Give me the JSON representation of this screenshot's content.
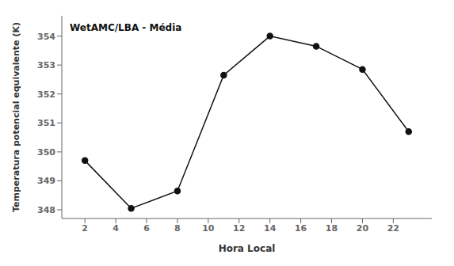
{
  "chart_data": {
    "type": "line",
    "x": [
      2,
      5,
      8,
      11,
      14,
      17,
      20,
      23
    ],
    "values": [
      349.7,
      348.05,
      348.65,
      352.65,
      354.0,
      353.65,
      352.85,
      350.7
    ],
    "xlabel": "Hora Local",
    "ylabel": "Temperatura potencial equivalente (K)",
    "annotation": "WetAMC/LBA - Média",
    "xlim": [
      0.5,
      24.5
    ],
    "ylim": [
      347.7,
      354.7
    ],
    "xticks": [
      2,
      4,
      6,
      8,
      10,
      12,
      14,
      16,
      18,
      20,
      22
    ],
    "yticks": [
      348,
      349,
      350,
      351,
      352,
      353,
      354
    ],
    "color": "#111111",
    "marker": "circle",
    "grid": false
  }
}
